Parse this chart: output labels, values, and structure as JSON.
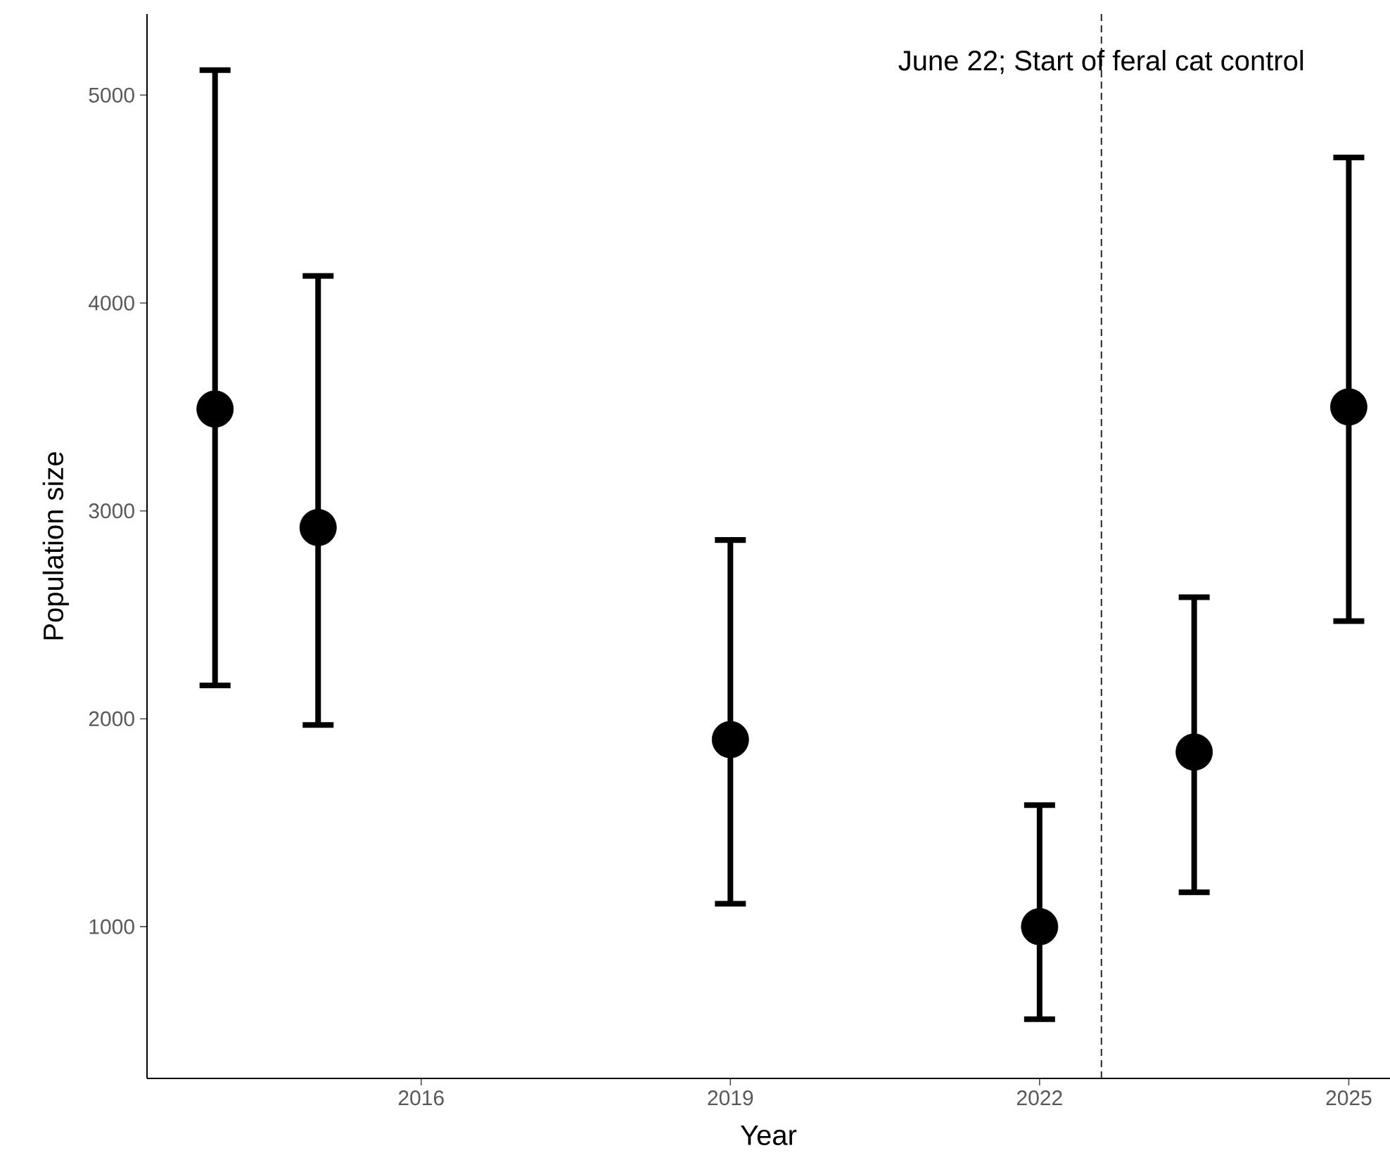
{
  "chart_data": {
    "type": "scatter",
    "xlabel": "Year",
    "ylabel": "Population size",
    "x": [
      2014,
      2015,
      2019,
      2022,
      2023.5,
      2025
    ],
    "values": [
      3490,
      2920,
      1900,
      1000,
      1840,
      3500
    ],
    "errors": [
      [
        2160,
        5120
      ],
      [
        1970,
        4130
      ],
      [
        1110,
        2860
      ],
      [
        555,
        1585
      ],
      [
        1165,
        2585
      ],
      [
        2470,
        4700
      ]
    ],
    "color": "#000000",
    "marker": "circle",
    "xlim": [
      2013.34,
      2025.4
    ],
    "xticks": [
      2016,
      2019,
      2022,
      2025
    ],
    "ylim": [
      270,
      5390
    ],
    "yticks": [
      1000,
      2000,
      3000,
      4000,
      5000
    ],
    "grid": false,
    "ref_lines": [
      {
        "axis": "x",
        "value": 2022.6,
        "label": "June 22; Start of feral cat control",
        "line_style": "dashed"
      }
    ]
  }
}
